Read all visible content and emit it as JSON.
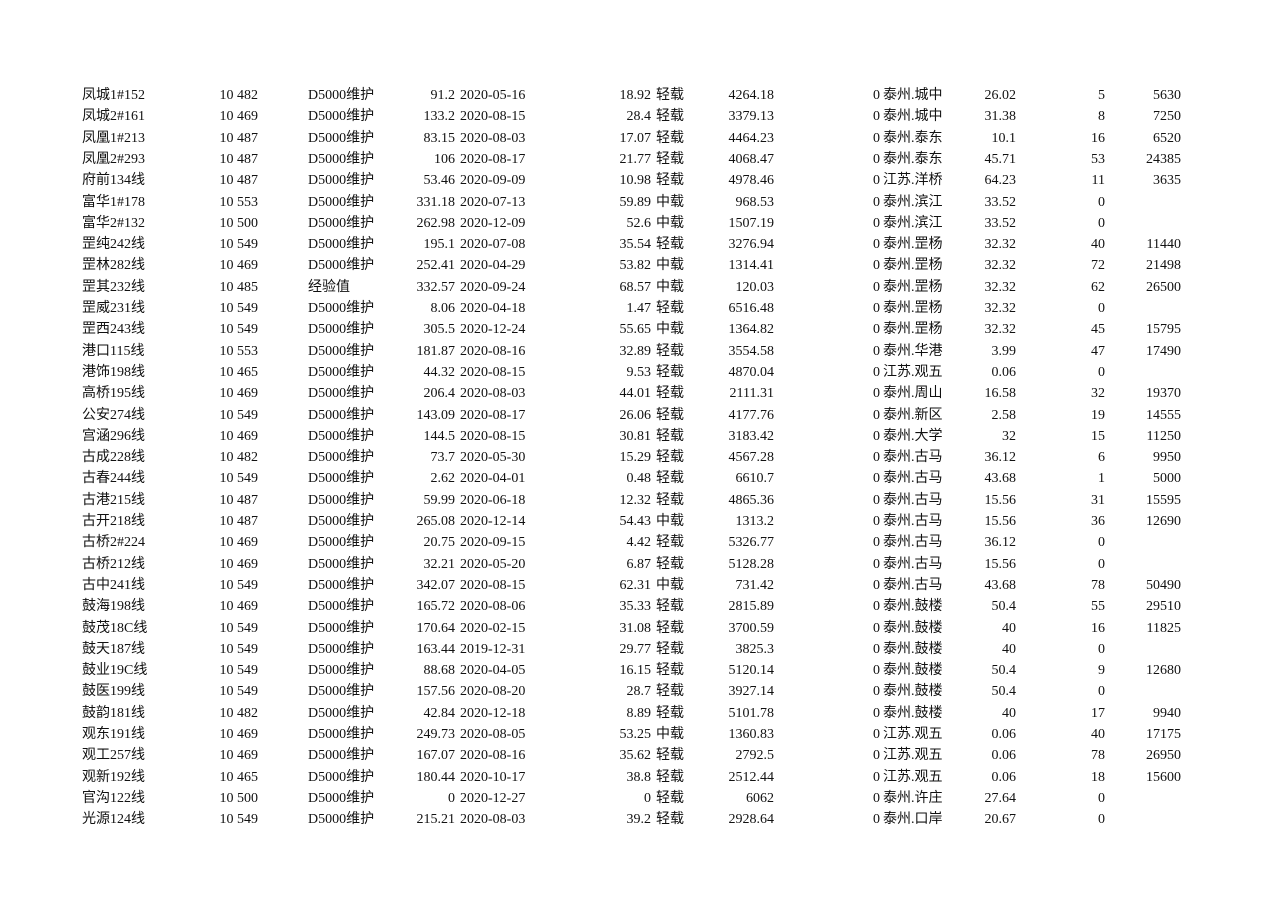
{
  "sheet": {
    "rows": [
      [
        "凤城1#152",
        "10 482",
        "D5000维护",
        "91.2",
        "2020-05-16",
        "18.92",
        "轻载",
        "4264.18",
        "0",
        "泰州.城中",
        "26.02",
        "5",
        "5630"
      ],
      [
        "凤城2#161",
        "10 469",
        "D5000维护",
        "133.2",
        "2020-08-15",
        "28.4",
        "轻载",
        "3379.13",
        "0",
        "泰州.城中",
        "31.38",
        "8",
        "7250"
      ],
      [
        "凤凰1#213",
        "10 487",
        "D5000维护",
        "83.15",
        "2020-08-03",
        "17.07",
        "轻载",
        "4464.23",
        "0",
        "泰州.泰东",
        "10.1",
        "16",
        "6520"
      ],
      [
        "凤凰2#293",
        "10 487",
        "D5000维护",
        "106",
        "2020-08-17",
        "21.77",
        "轻载",
        "4068.47",
        "0",
        "泰州.泰东",
        "45.71",
        "53",
        "24385"
      ],
      [
        "府前134线",
        "10 487",
        "D5000维护",
        "53.46",
        "2020-09-09",
        "10.98",
        "轻载",
        "4978.46",
        "0",
        "江苏.洋桥",
        "64.23",
        "11",
        "3635"
      ],
      [
        "富华1#178",
        "10 553",
        "D5000维护",
        "331.18",
        "2020-07-13",
        "59.89",
        "中载",
        "968.53",
        "0",
        "泰州.滨江",
        "33.52",
        "0",
        ""
      ],
      [
        "富华2#132",
        "10 500",
        "D5000维护",
        "262.98",
        "2020-12-09",
        "52.6",
        "中载",
        "1507.19",
        "0",
        "泰州.滨江",
        "33.52",
        "0",
        ""
      ],
      [
        "罡纯242线",
        "10 549",
        "D5000维护",
        "195.1",
        "2020-07-08",
        "35.54",
        "轻载",
        "3276.94",
        "0",
        "泰州.罡杨",
        "32.32",
        "40",
        "11440"
      ],
      [
        "罡林282线",
        "10 469",
        "D5000维护",
        "252.41",
        "2020-04-29",
        "53.82",
        "中载",
        "1314.41",
        "0",
        "泰州.罡杨",
        "32.32",
        "72",
        "21498"
      ],
      [
        "罡其232线",
        "10 485",
        "经验值",
        "332.57",
        "2020-09-24",
        "68.57",
        "中载",
        "120.03",
        "0",
        "泰州.罡杨",
        "32.32",
        "62",
        "26500"
      ],
      [
        "罡威231线",
        "10 549",
        "D5000维护",
        "8.06",
        "2020-04-18",
        "1.47",
        "轻载",
        "6516.48",
        "0",
        "泰州.罡杨",
        "32.32",
        "0",
        ""
      ],
      [
        "罡西243线",
        "10 549",
        "D5000维护",
        "305.5",
        "2020-12-24",
        "55.65",
        "中载",
        "1364.82",
        "0",
        "泰州.罡杨",
        "32.32",
        "45",
        "15795"
      ],
      [
        "港口115线",
        "10 553",
        "D5000维护",
        "181.87",
        "2020-08-16",
        "32.89",
        "轻载",
        "3554.58",
        "0",
        "泰州.华港",
        "3.99",
        "47",
        "17490"
      ],
      [
        "港饰198线",
        "10 465",
        "D5000维护",
        "44.32",
        "2020-08-15",
        "9.53",
        "轻载",
        "4870.04",
        "0",
        "江苏.观五",
        "0.06",
        "0",
        ""
      ],
      [
        "高桥195线",
        "10 469",
        "D5000维护",
        "206.4",
        "2020-08-03",
        "44.01",
        "轻载",
        "2111.31",
        "0",
        "泰州.周山",
        "16.58",
        "32",
        "19370"
      ],
      [
        "公安274线",
        "10 549",
        "D5000维护",
        "143.09",
        "2020-08-17",
        "26.06",
        "轻载",
        "4177.76",
        "0",
        "泰州.新区",
        "2.58",
        "19",
        "14555"
      ],
      [
        "宫涵296线",
        "10 469",
        "D5000维护",
        "144.5",
        "2020-08-15",
        "30.81",
        "轻载",
        "3183.42",
        "0",
        "泰州.大学",
        "32",
        "15",
        "11250"
      ],
      [
        "古成228线",
        "10 482",
        "D5000维护",
        "73.7",
        "2020-05-30",
        "15.29",
        "轻载",
        "4567.28",
        "0",
        "泰州.古马",
        "36.12",
        "6",
        "9950"
      ],
      [
        "古春244线",
        "10 549",
        "D5000维护",
        "2.62",
        "2020-04-01",
        "0.48",
        "轻载",
        "6610.7",
        "0",
        "泰州.古马",
        "43.68",
        "1",
        "5000"
      ],
      [
        "古港215线",
        "10 487",
        "D5000维护",
        "59.99",
        "2020-06-18",
        "12.32",
        "轻载",
        "4865.36",
        "0",
        "泰州.古马",
        "15.56",
        "31",
        "15595"
      ],
      [
        "古开218线",
        "10 487",
        "D5000维护",
        "265.08",
        "2020-12-14",
        "54.43",
        "中载",
        "1313.2",
        "0",
        "泰州.古马",
        "15.56",
        "36",
        "12690"
      ],
      [
        "古桥2#224",
        "10 469",
        "D5000维护",
        "20.75",
        "2020-09-15",
        "4.42",
        "轻载",
        "5326.77",
        "0",
        "泰州.古马",
        "36.12",
        "0",
        ""
      ],
      [
        "古桥212线",
        "10 469",
        "D5000维护",
        "32.21",
        "2020-05-20",
        "6.87",
        "轻载",
        "5128.28",
        "0",
        "泰州.古马",
        "15.56",
        "0",
        ""
      ],
      [
        "古中241线",
        "10 549",
        "D5000维护",
        "342.07",
        "2020-08-15",
        "62.31",
        "中载",
        "731.42",
        "0",
        "泰州.古马",
        "43.68",
        "78",
        "50490"
      ],
      [
        "鼓海198线",
        "10 469",
        "D5000维护",
        "165.72",
        "2020-08-06",
        "35.33",
        "轻载",
        "2815.89",
        "0",
        "泰州.鼓楼",
        "50.4",
        "55",
        "29510"
      ],
      [
        "鼓茂18C线",
        "10 549",
        "D5000维护",
        "170.64",
        "2020-02-15",
        "31.08",
        "轻载",
        "3700.59",
        "0",
        "泰州.鼓楼",
        "40",
        "16",
        "11825"
      ],
      [
        "鼓天187线",
        "10 549",
        "D5000维护",
        "163.44",
        "2019-12-31",
        "29.77",
        "轻载",
        "3825.3",
        "0",
        "泰州.鼓楼",
        "40",
        "0",
        ""
      ],
      [
        "鼓业19C线",
        "10 549",
        "D5000维护",
        "88.68",
        "2020-04-05",
        "16.15",
        "轻载",
        "5120.14",
        "0",
        "泰州.鼓楼",
        "50.4",
        "9",
        "12680"
      ],
      [
        "鼓医199线",
        "10 549",
        "D5000维护",
        "157.56",
        "2020-08-20",
        "28.7",
        "轻载",
        "3927.14",
        "0",
        "泰州.鼓楼",
        "50.4",
        "0",
        ""
      ],
      [
        "鼓韵181线",
        "10 482",
        "D5000维护",
        "42.84",
        "2020-12-18",
        "8.89",
        "轻载",
        "5101.78",
        "0",
        "泰州.鼓楼",
        "40",
        "17",
        "9940"
      ],
      [
        "观东191线",
        "10 469",
        "D5000维护",
        "249.73",
        "2020-08-05",
        "53.25",
        "中载",
        "1360.83",
        "0",
        "江苏.观五",
        "0.06",
        "40",
        "17175"
      ],
      [
        "观工257线",
        "10 469",
        "D5000维护",
        "167.07",
        "2020-08-16",
        "35.62",
        "轻载",
        "2792.5",
        "0",
        "江苏.观五",
        "0.06",
        "78",
        "26950"
      ],
      [
        "观新192线",
        "10 465",
        "D5000维护",
        "180.44",
        "2020-10-17",
        "38.8",
        "轻载",
        "2512.44",
        "0",
        "江苏.观五",
        "0.06",
        "18",
        "15600"
      ],
      [
        "官沟122线",
        "10 500",
        "D5000维护",
        "0",
        "2020-12-27",
        "0",
        "轻载",
        "6062",
        "0",
        "泰州.许庄",
        "27.64",
        "0",
        ""
      ],
      [
        "光源124线",
        "10 549",
        "D5000维护",
        "215.21",
        "2020-08-03",
        "39.2",
        "轻载",
        "2928.64",
        "0",
        "泰州.口岸",
        "20.67",
        "0",
        ""
      ]
    ]
  }
}
